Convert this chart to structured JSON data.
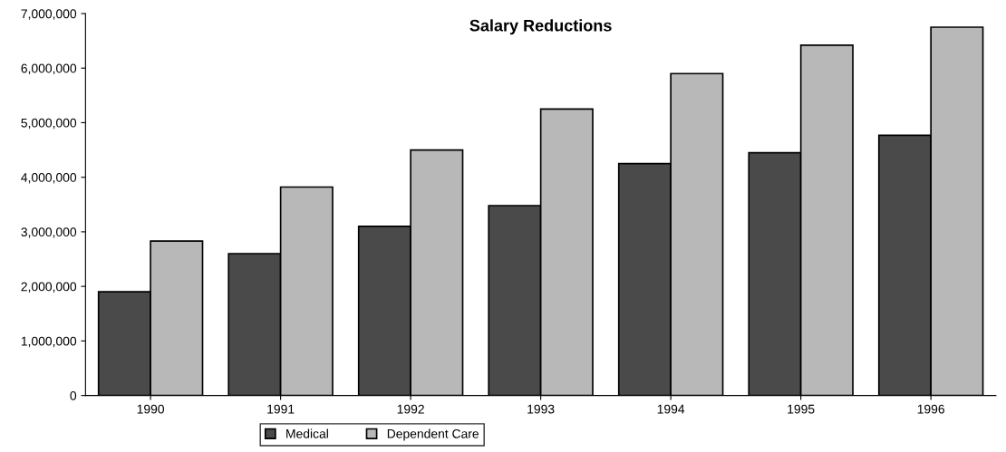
{
  "chart_data": {
    "type": "bar",
    "title": "Salary Reductions",
    "categories": [
      "1990",
      "1991",
      "1992",
      "1993",
      "1994",
      "1995",
      "1996"
    ],
    "series": [
      {
        "name": "Medical",
        "color": "#4a4a4a",
        "values": [
          1900000,
          2600000,
          3100000,
          3480000,
          4250000,
          4450000,
          4770000
        ]
      },
      {
        "name": "Dependent Care",
        "color": "#b8b8b8",
        "values": [
          2830000,
          3820000,
          4500000,
          5250000,
          5900000,
          6420000,
          6750000
        ]
      }
    ],
    "ylim": [
      0,
      7000000
    ],
    "yticks": [
      {
        "value": 0,
        "label": "0"
      },
      {
        "value": 1000000,
        "label": "1,000,000"
      },
      {
        "value": 2000000,
        "label": "2,000,000"
      },
      {
        "value": 3000000,
        "label": "3,000,000"
      },
      {
        "value": 4000000,
        "label": "4,000,000"
      },
      {
        "value": 5000000,
        "label": "5,000,000"
      },
      {
        "value": 6000000,
        "label": "6,000,000"
      },
      {
        "value": 7000000,
        "label": "7,000,000"
      }
    ],
    "grid": false,
    "legend": "bottom"
  }
}
